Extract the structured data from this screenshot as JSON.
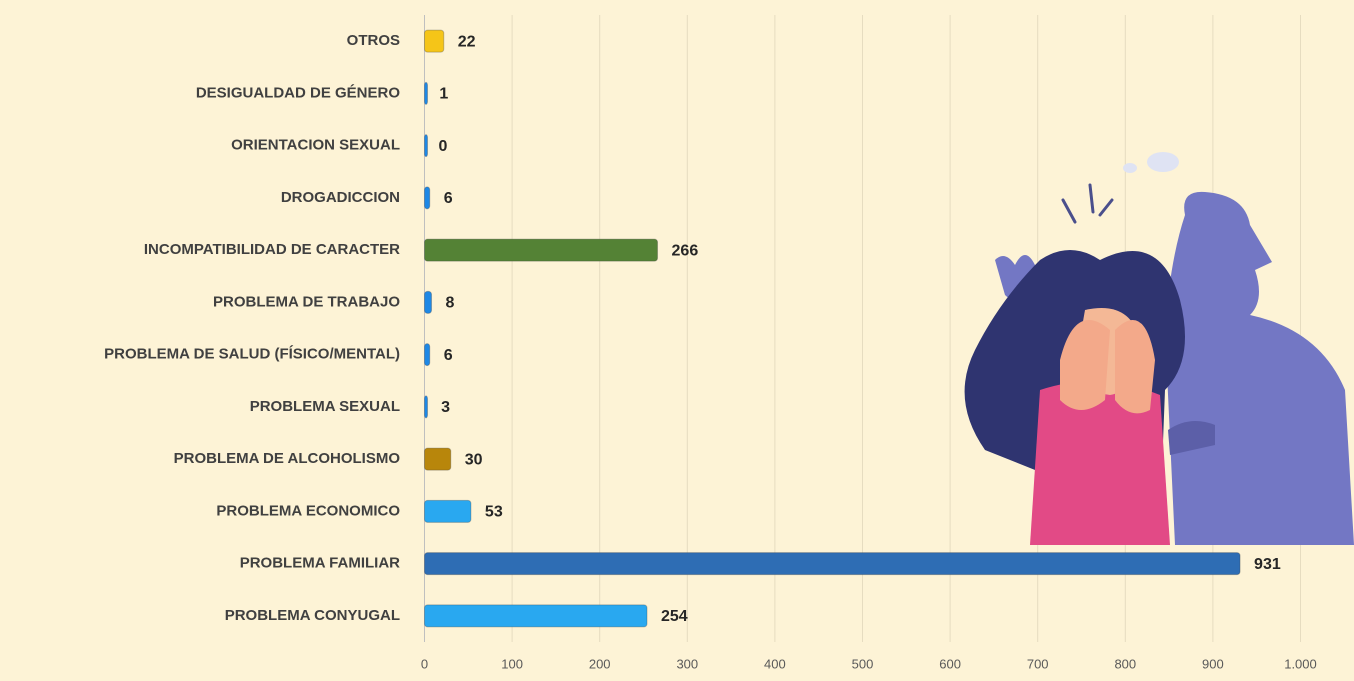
{
  "chart_data": {
    "type": "bar",
    "orientation": "horizontal",
    "categories": [
      "OTROS",
      "DESIGUALDAD DE GÉNERO",
      "ORIENTACION SEXUAL",
      "DROGADICCION",
      "INCOMPATIBILIDAD DE CARACTER",
      "PROBLEMA DE TRABAJO",
      "PROBLEMA DE SALUD (FÍSICO/MENTAL)",
      "PROBLEMA SEXUAL",
      "PROBLEMA DE ALCOHOLISMO",
      "PROBLEMA ECONOMICO",
      "PROBLEMA FAMILIAR",
      "PROBLEMA CONYUGAL"
    ],
    "values": [
      22,
      1,
      0,
      6,
      266,
      8,
      6,
      3,
      30,
      53,
      931,
      254
    ],
    "colors": [
      "#f5c518",
      "#1e88e5",
      "#1e88e5",
      "#1e88e5",
      "#548235",
      "#1e88e5",
      "#1e88e5",
      "#1e88e5",
      "#b8860b",
      "#29a8f0",
      "#2e6db4",
      "#29a8f0"
    ],
    "xlim": [
      0,
      1000
    ],
    "xticks": [
      0,
      100,
      200,
      300,
      400,
      500,
      600,
      700,
      800,
      900,
      {
        "value": 1000,
        "label": "1.000"
      }
    ],
    "grid": true
  }
}
